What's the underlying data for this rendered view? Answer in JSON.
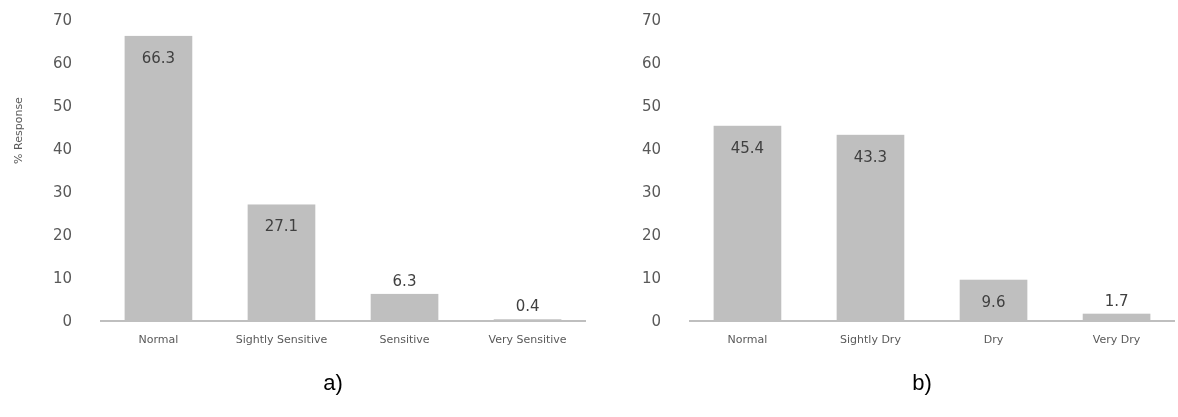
{
  "chart_data": [
    {
      "type": "bar",
      "ylabel": "% Response",
      "categories": [
        "Normal",
        "Sightly Sensitive",
        "Sensitive",
        "Very Sensitive"
      ],
      "values": [
        66.3,
        27.1,
        6.3,
        0.4
      ],
      "color": "#bfbfbf",
      "ylim": [
        0,
        70
      ],
      "yticks": [
        0,
        10,
        20,
        30,
        40,
        50,
        60,
        70
      ],
      "data_labels": true,
      "grid": false,
      "annotations": [
        "a)"
      ]
    },
    {
      "type": "bar",
      "categories": [
        "Normal",
        "Sightly Dry",
        "Dry",
        "Very Dry"
      ],
      "values": [
        45.4,
        43.3,
        9.6,
        1.7
      ],
      "color": "#bfbfbf",
      "ylim": [
        0,
        70
      ],
      "yticks": [
        0,
        10,
        20,
        30,
        40,
        50,
        60,
        70
      ],
      "data_labels": true,
      "grid": false,
      "annotations": [
        "b)"
      ]
    }
  ]
}
